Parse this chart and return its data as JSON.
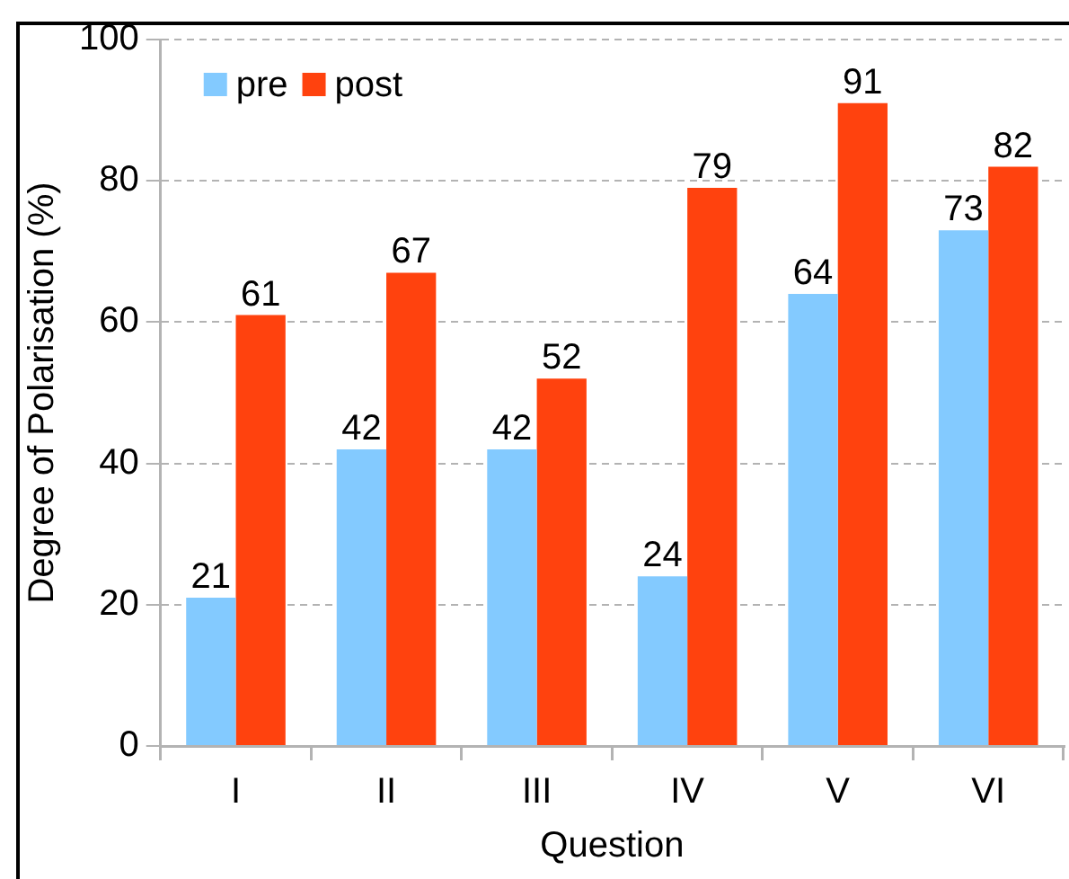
{
  "chart_data": {
    "type": "bar",
    "xlabel": "Question",
    "ylabel": "Degree of Polarisation (%)",
    "categories": [
      "I",
      "II",
      "III",
      "IV",
      "V",
      "VI"
    ],
    "series": [
      {
        "name": "pre",
        "color": "#83caff",
        "values": [
          21,
          42,
          42,
          24,
          64,
          73
        ]
      },
      {
        "name": "post",
        "color": "#ff420e",
        "values": [
          61,
          67,
          52,
          79,
          91,
          82
        ]
      }
    ],
    "ylim": [
      0,
      100
    ],
    "yticks": [
      0,
      20,
      40,
      60,
      80,
      100
    ],
    "grid": "y",
    "legend": "top left",
    "data_labels": true
  }
}
